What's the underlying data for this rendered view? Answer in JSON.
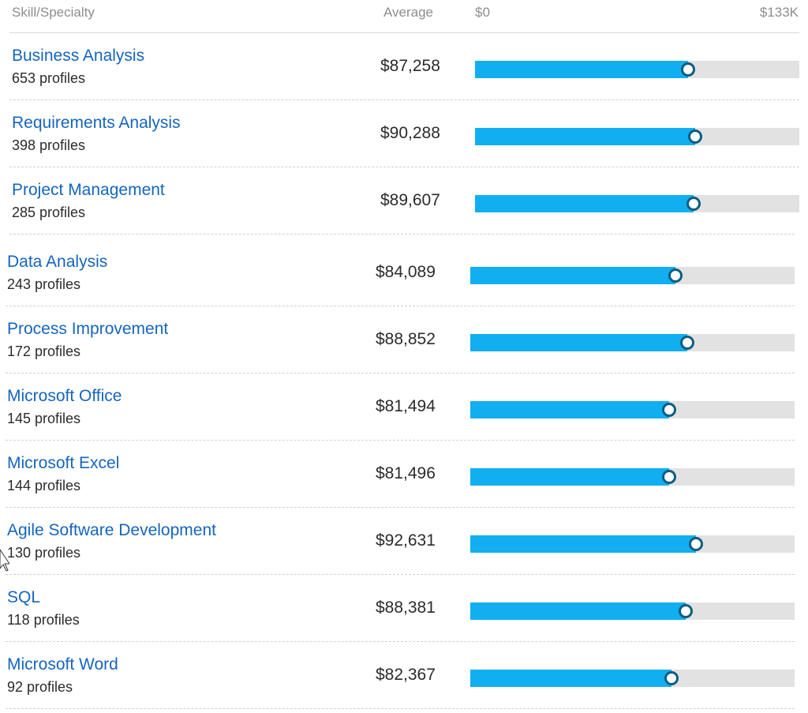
{
  "header": {
    "skill_label": "Skill/Specialty",
    "average_label": "Average",
    "scale_min": "$0",
    "scale_max": "$133K"
  },
  "scale": {
    "min": 0,
    "max": 133000
  },
  "colors": {
    "link": "#1565c0",
    "bar_fill": "#11aff0",
    "bar_track": "#e2e2e2",
    "marker_border": "#0a5d84",
    "header_text": "#8d8d8d",
    "body_text": "#2b2b2b"
  },
  "rows": [
    {
      "name": "Business Analysis",
      "profiles": "653 profiles",
      "average": "$87,258",
      "value": 87258
    },
    {
      "name": "Requirements Analysis",
      "profiles": "398 profiles",
      "average": "$90,288",
      "value": 90288
    },
    {
      "name": "Project Management",
      "profiles": "285 profiles",
      "average": "$89,607",
      "value": 89607
    },
    {
      "name": "Data Analysis",
      "profiles": "243 profiles",
      "average": "$84,089",
      "value": 84089
    },
    {
      "name": "Process Improvement",
      "profiles": "172 profiles",
      "average": "$88,852",
      "value": 88852
    },
    {
      "name": "Microsoft Office",
      "profiles": "145 profiles",
      "average": "$81,494",
      "value": 81494
    },
    {
      "name": "Microsoft Excel",
      "profiles": "144 profiles",
      "average": "$81,496",
      "value": 81496
    },
    {
      "name": "Agile Software Development",
      "profiles": "130 profiles",
      "average": "$92,631",
      "value": 92631
    },
    {
      "name": "SQL",
      "profiles": "118 profiles",
      "average": "$88,381",
      "value": 88381
    },
    {
      "name": "Microsoft Word",
      "profiles": "92 profiles",
      "average": "$82,367",
      "value": 82367
    }
  ]
}
